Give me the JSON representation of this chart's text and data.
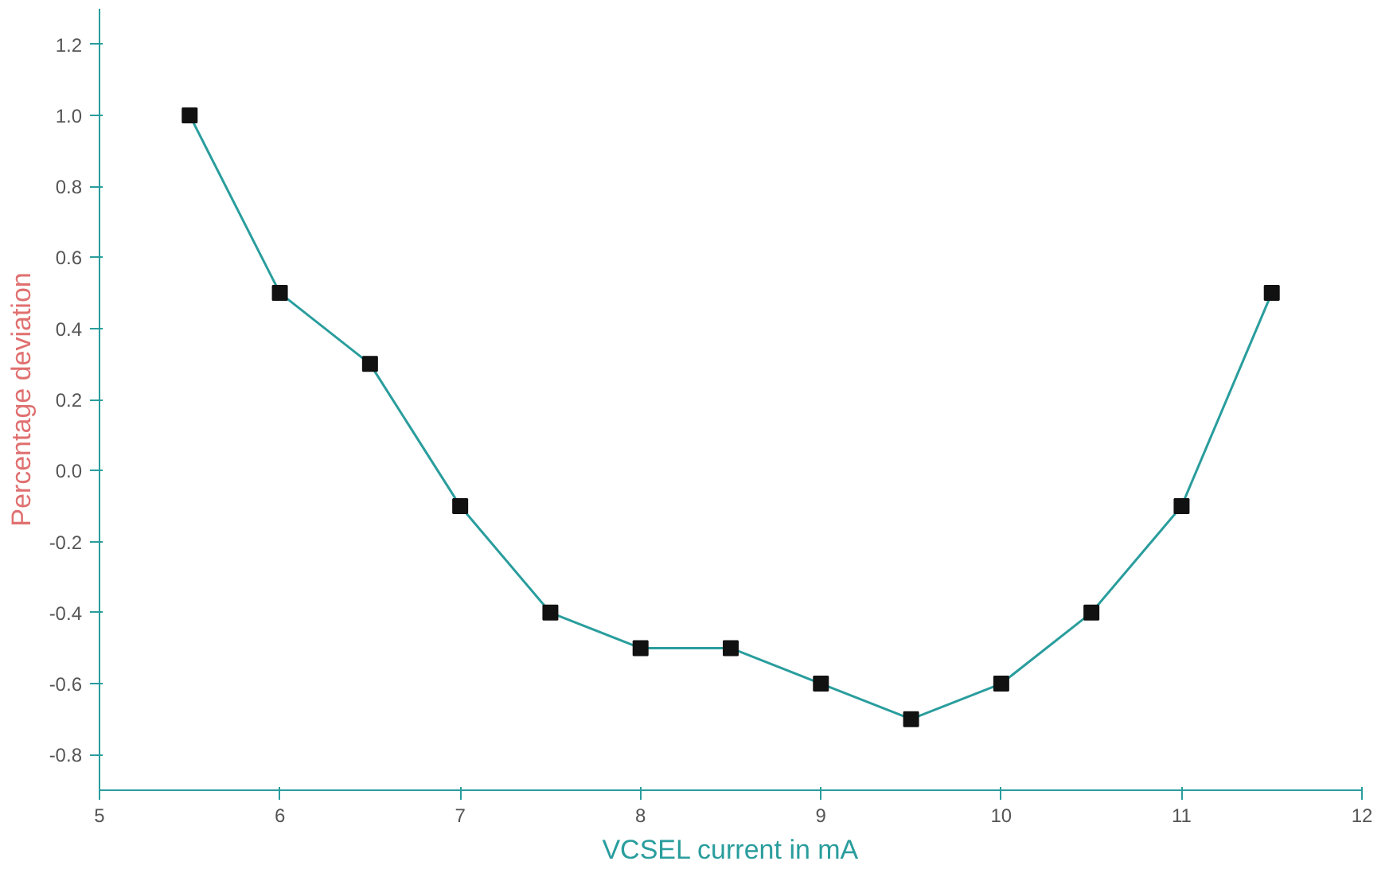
{
  "chart_data": {
    "type": "line",
    "xlabel": "VCSEL current in mA",
    "ylabel": "Percentage deviation",
    "x": [
      5.5,
      6,
      6.5,
      7,
      7.5,
      8,
      8.5,
      9,
      9.5,
      10,
      10.5,
      11,
      11.5
    ],
    "series": [
      {
        "color": "#2a9d9d",
        "values": [
          1.0,
          0.5,
          0.3,
          -0.1,
          -0.4,
          -0.5,
          -0.5,
          -0.6,
          -0.7,
          -0.6,
          -0.4,
          -0.1,
          0.5
        ]
      }
    ],
    "marker": "square",
    "line_style": "solid",
    "grid": false,
    "xlim": [
      5,
      12
    ],
    "xticks": [
      5,
      6,
      7,
      8,
      9,
      10,
      11,
      12
    ],
    "ylim": [
      -0.9,
      1.3
    ],
    "yticks": [
      {
        "value": -0.8,
        "label": "-0.8"
      },
      {
        "value": -0.6,
        "label": "-0.6"
      },
      {
        "value": -0.4,
        "label": "-0.4"
      },
      {
        "value": -0.2,
        "label": "-0.2"
      },
      {
        "value": 0,
        "label": "0.0"
      },
      {
        "value": 0.2,
        "label": "0.2"
      },
      {
        "value": 0.4,
        "label": "0.4"
      },
      {
        "value": 0.6,
        "label": "0.6"
      },
      {
        "value": 0.8,
        "label": "0.8"
      },
      {
        "value": 1.0,
        "label": "1.0"
      },
      {
        "value": 1.2,
        "label": "1.2"
      }
    ]
  }
}
